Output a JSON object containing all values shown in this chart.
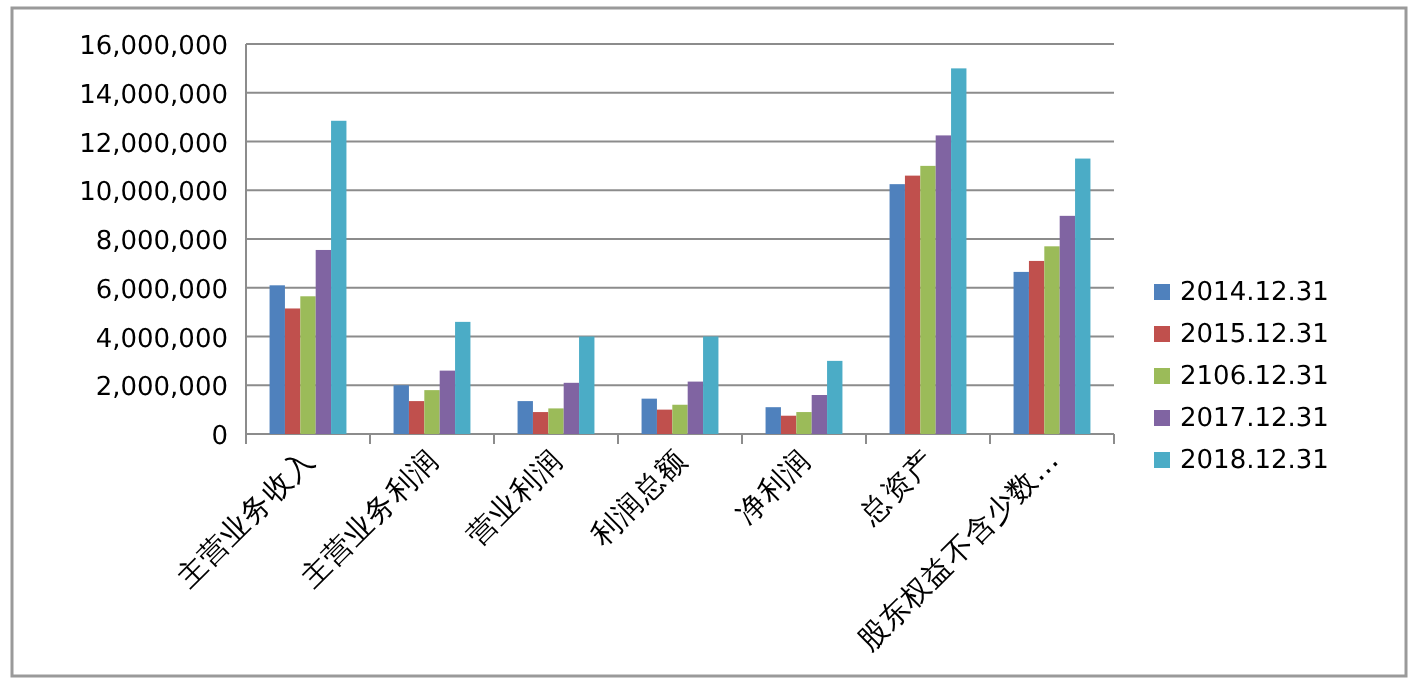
{
  "chart_data": {
    "type": "bar",
    "categories": [
      "主营业务收入",
      "主营业务利润",
      "营业利润",
      "利润总额",
      "净利润",
      "总资产",
      "股东权益不含少数…"
    ],
    "series": [
      {
        "name": "2014.12.31",
        "color": "#4f81bd",
        "values": [
          6100000,
          2000000,
          1350000,
          1450000,
          1100000,
          10250000,
          6650000
        ]
      },
      {
        "name": "2015.12.31",
        "color": "#c0504d",
        "values": [
          5150000,
          1350000,
          900000,
          1000000,
          750000,
          10600000,
          7100000
        ]
      },
      {
        "name": "2106.12.31",
        "color": "#9bbb59",
        "values": [
          5650000,
          1800000,
          1050000,
          1200000,
          900000,
          11000000,
          7700000
        ]
      },
      {
        "name": "2017.12.31",
        "color": "#8064a2",
        "values": [
          7550000,
          2600000,
          2100000,
          2150000,
          1600000,
          12250000,
          8950000
        ]
      },
      {
        "name": "2018.12.31",
        "color": "#4bacc6",
        "values": [
          12850000,
          4600000,
          4000000,
          4000000,
          3000000,
          15000000,
          11300000
        ]
      }
    ],
    "ylim": [
      0,
      16000000
    ],
    "yticks": [
      {
        "value": 0,
        "label": "0"
      },
      {
        "value": 2000000,
        "label": "2,000,000"
      },
      {
        "value": 4000000,
        "label": "4,000,000"
      },
      {
        "value": 6000000,
        "label": "6,000,000"
      },
      {
        "value": 8000000,
        "label": "8,000,000"
      },
      {
        "value": 10000000,
        "label": "10,000,000"
      },
      {
        "value": 12000000,
        "label": "12,000,000"
      },
      {
        "value": 14000000,
        "label": "14,000,000"
      },
      {
        "value": 16000000,
        "label": "16,000,000"
      }
    ],
    "grid": "y",
    "legend": "right"
  }
}
